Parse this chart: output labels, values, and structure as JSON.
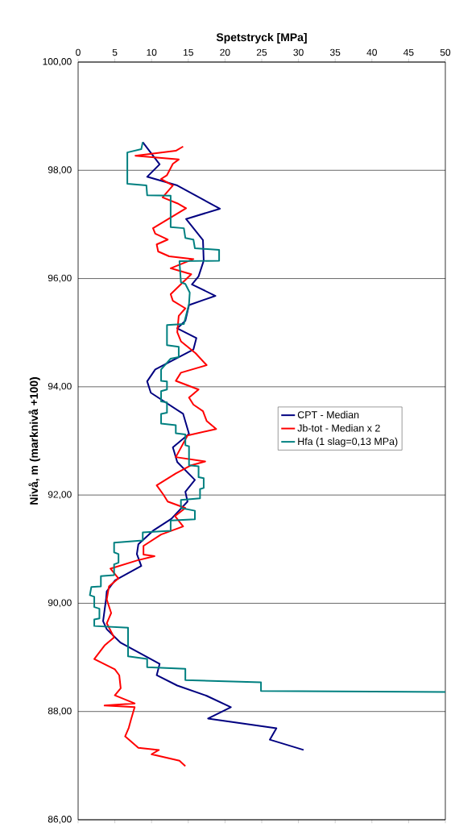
{
  "chart_data": {
    "type": "line",
    "xlabel": "Spetstryck [MPa]",
    "ylabel": "Nivå, m (marknivå +100)",
    "xlim": [
      0,
      50
    ],
    "xticks": [
      0,
      5,
      10,
      15,
      20,
      25,
      30,
      35,
      40,
      45,
      50
    ],
    "ylim": [
      86,
      100
    ],
    "yticks": [
      {
        "value": 86,
        "label": "86,00"
      },
      {
        "value": 88,
        "label": "88,00"
      },
      {
        "value": 90,
        "label": "90,00"
      },
      {
        "value": 92,
        "label": "92,00"
      },
      {
        "value": 94,
        "label": "94,00"
      },
      {
        "value": 96,
        "label": "96,00"
      },
      {
        "value": 98,
        "label": "98,00"
      },
      {
        "value": 100,
        "label": "100,00"
      }
    ],
    "grid": "y",
    "legend": "right",
    "marker": "none",
    "line_style": "solid",
    "series": [
      {
        "name": "CPT - Median",
        "color": "#000080",
        "x": [
          8.8,
          11.1,
          9.4,
          13.5,
          19.3,
          14.7,
          17.0,
          17.1,
          16.4,
          15.5,
          18.7,
          15.1,
          14.6,
          13.5,
          16.1,
          15.7,
          10.5,
          9.4,
          9.9,
          14.3,
          15.1,
          12.9,
          13.5,
          15.9,
          14.6,
          14.9,
          12.7,
          10.2,
          8.2,
          8.0,
          8.6,
          5.0,
          3.9,
          3.8,
          3.4,
          3.9,
          5.8,
          11.1,
          10.7,
          13.5,
          17.5,
          20.8,
          17.7,
          27.0,
          26.1,
          30.7
        ],
        "values": [
          98.52,
          98.11,
          97.88,
          97.72,
          97.29,
          97.1,
          96.71,
          96.33,
          96.04,
          95.89,
          95.68,
          95.51,
          95.22,
          95.08,
          94.9,
          94.69,
          94.32,
          94.1,
          93.89,
          93.5,
          93.13,
          92.88,
          92.61,
          92.28,
          92.06,
          91.88,
          91.56,
          91.34,
          91.09,
          90.91,
          90.69,
          90.42,
          90.22,
          90.07,
          89.67,
          89.52,
          89.27,
          88.88,
          88.67,
          88.48,
          88.29,
          88.08,
          87.87,
          87.69,
          87.48,
          87.29
        ]
      },
      {
        "name": "Jb-tot - Median x 2",
        "color": "#ff0000",
        "x": [
          14.3,
          13.3,
          7.8,
          13.7,
          12.9,
          12.1,
          11.3,
          12.9,
          11.5,
          13.5,
          14.7,
          10.2,
          10.5,
          12.2,
          10.7,
          10.9,
          12.4,
          15.7,
          12.6,
          15.4,
          12.6,
          12.9,
          14.6,
          13.7,
          13.5,
          14.0,
          16.0,
          17.5,
          14.0,
          13.3,
          16.4,
          15.1,
          15.7,
          17.0,
          17.5,
          18.8,
          14.9,
          13.3,
          17.3,
          15.4,
          13.3,
          10.7,
          11.6,
          12.2,
          14.6,
          13.2,
          14.3,
          11.3,
          8.9,
          8.9,
          10.4,
          8.0,
          4.4,
          5.5,
          4.2,
          3.9,
          4.5,
          3.9,
          4.9,
          3.6,
          2.2,
          5.0,
          5.6,
          5.8,
          5.0,
          7.7,
          3.6,
          7.7,
          7.2,
          6.9,
          6.4,
          8.2,
          11.0,
          10.0,
          13.8,
          14.6
        ],
        "values": [
          98.44,
          98.36,
          98.27,
          98.2,
          98.12,
          97.91,
          97.84,
          97.72,
          97.5,
          97.39,
          97.3,
          96.93,
          96.83,
          96.72,
          96.63,
          96.5,
          96.41,
          96.36,
          96.19,
          96.08,
          95.71,
          95.59,
          95.45,
          95.31,
          95.01,
          94.84,
          94.62,
          94.4,
          94.26,
          94.11,
          93.95,
          93.8,
          93.67,
          93.55,
          93.37,
          93.22,
          93.1,
          92.7,
          92.62,
          92.55,
          92.4,
          92.18,
          92.01,
          91.88,
          91.76,
          91.61,
          91.42,
          91.27,
          91.06,
          90.9,
          90.87,
          90.79,
          90.64,
          90.46,
          90.31,
          90.07,
          89.82,
          89.63,
          89.37,
          89.22,
          88.97,
          88.78,
          88.67,
          88.43,
          88.3,
          88.15,
          88.11,
          88.08,
          87.85,
          87.7,
          87.54,
          87.33,
          87.29,
          87.21,
          87.09,
          86.99
        ]
      },
      {
        "name": "Hfa (1 slag=0,13 MPa)",
        "color": "#008080",
        "x": [
          8.8,
          8.6,
          6.7,
          6.7,
          9.3,
          9.4,
          12.6,
          12.6,
          14.4,
          14.6,
          15.7,
          15.9,
          19.2,
          19.2,
          13.8,
          14.0,
          14.6,
          15.2,
          15.1,
          14.4,
          12.1,
          12.1,
          13.7,
          13.7,
          12.6,
          11.3,
          11.3,
          12.1,
          12.1,
          11.3,
          11.3,
          12.1,
          12.1,
          11.3,
          11.3,
          13.3,
          13.3,
          14.6,
          14.6,
          15.1,
          15.1,
          16.4,
          16.4,
          17.1,
          17.1,
          16.6,
          16.6,
          14.0,
          14.0,
          15.9,
          15.9,
          12.6,
          12.6,
          8.8,
          8.8,
          4.9,
          4.9,
          5.5,
          5.5,
          4.9,
          4.9,
          3.1,
          3.1,
          1.8,
          1.6,
          2.2,
          2.2,
          2.9,
          2.9,
          2.2,
          2.2,
          6.8,
          6.8,
          9.4,
          9.4,
          14.6,
          14.6,
          24.9,
          24.9,
          50.0
        ],
        "values": [
          98.52,
          98.39,
          98.33,
          97.75,
          97.72,
          97.54,
          97.53,
          96.95,
          96.93,
          96.75,
          96.72,
          96.56,
          96.53,
          96.33,
          96.32,
          95.93,
          95.9,
          95.74,
          95.53,
          95.16,
          95.14,
          94.77,
          94.74,
          94.55,
          94.52,
          94.32,
          94.11,
          94.1,
          93.95,
          93.92,
          93.73,
          93.71,
          93.52,
          93.5,
          93.32,
          93.29,
          93.14,
          93.12,
          92.92,
          92.9,
          92.55,
          92.53,
          92.33,
          92.31,
          92.13,
          92.11,
          91.94,
          91.91,
          91.76,
          91.71,
          91.55,
          91.53,
          91.34,
          91.31,
          91.16,
          91.12,
          90.94,
          90.91,
          90.75,
          90.72,
          90.52,
          90.5,
          90.31,
          90.3,
          90.15,
          90.12,
          89.93,
          89.9,
          89.72,
          89.7,
          89.58,
          89.55,
          89.02,
          88.97,
          88.82,
          88.79,
          88.58,
          88.54,
          88.38,
          88.36
        ]
      }
    ]
  }
}
